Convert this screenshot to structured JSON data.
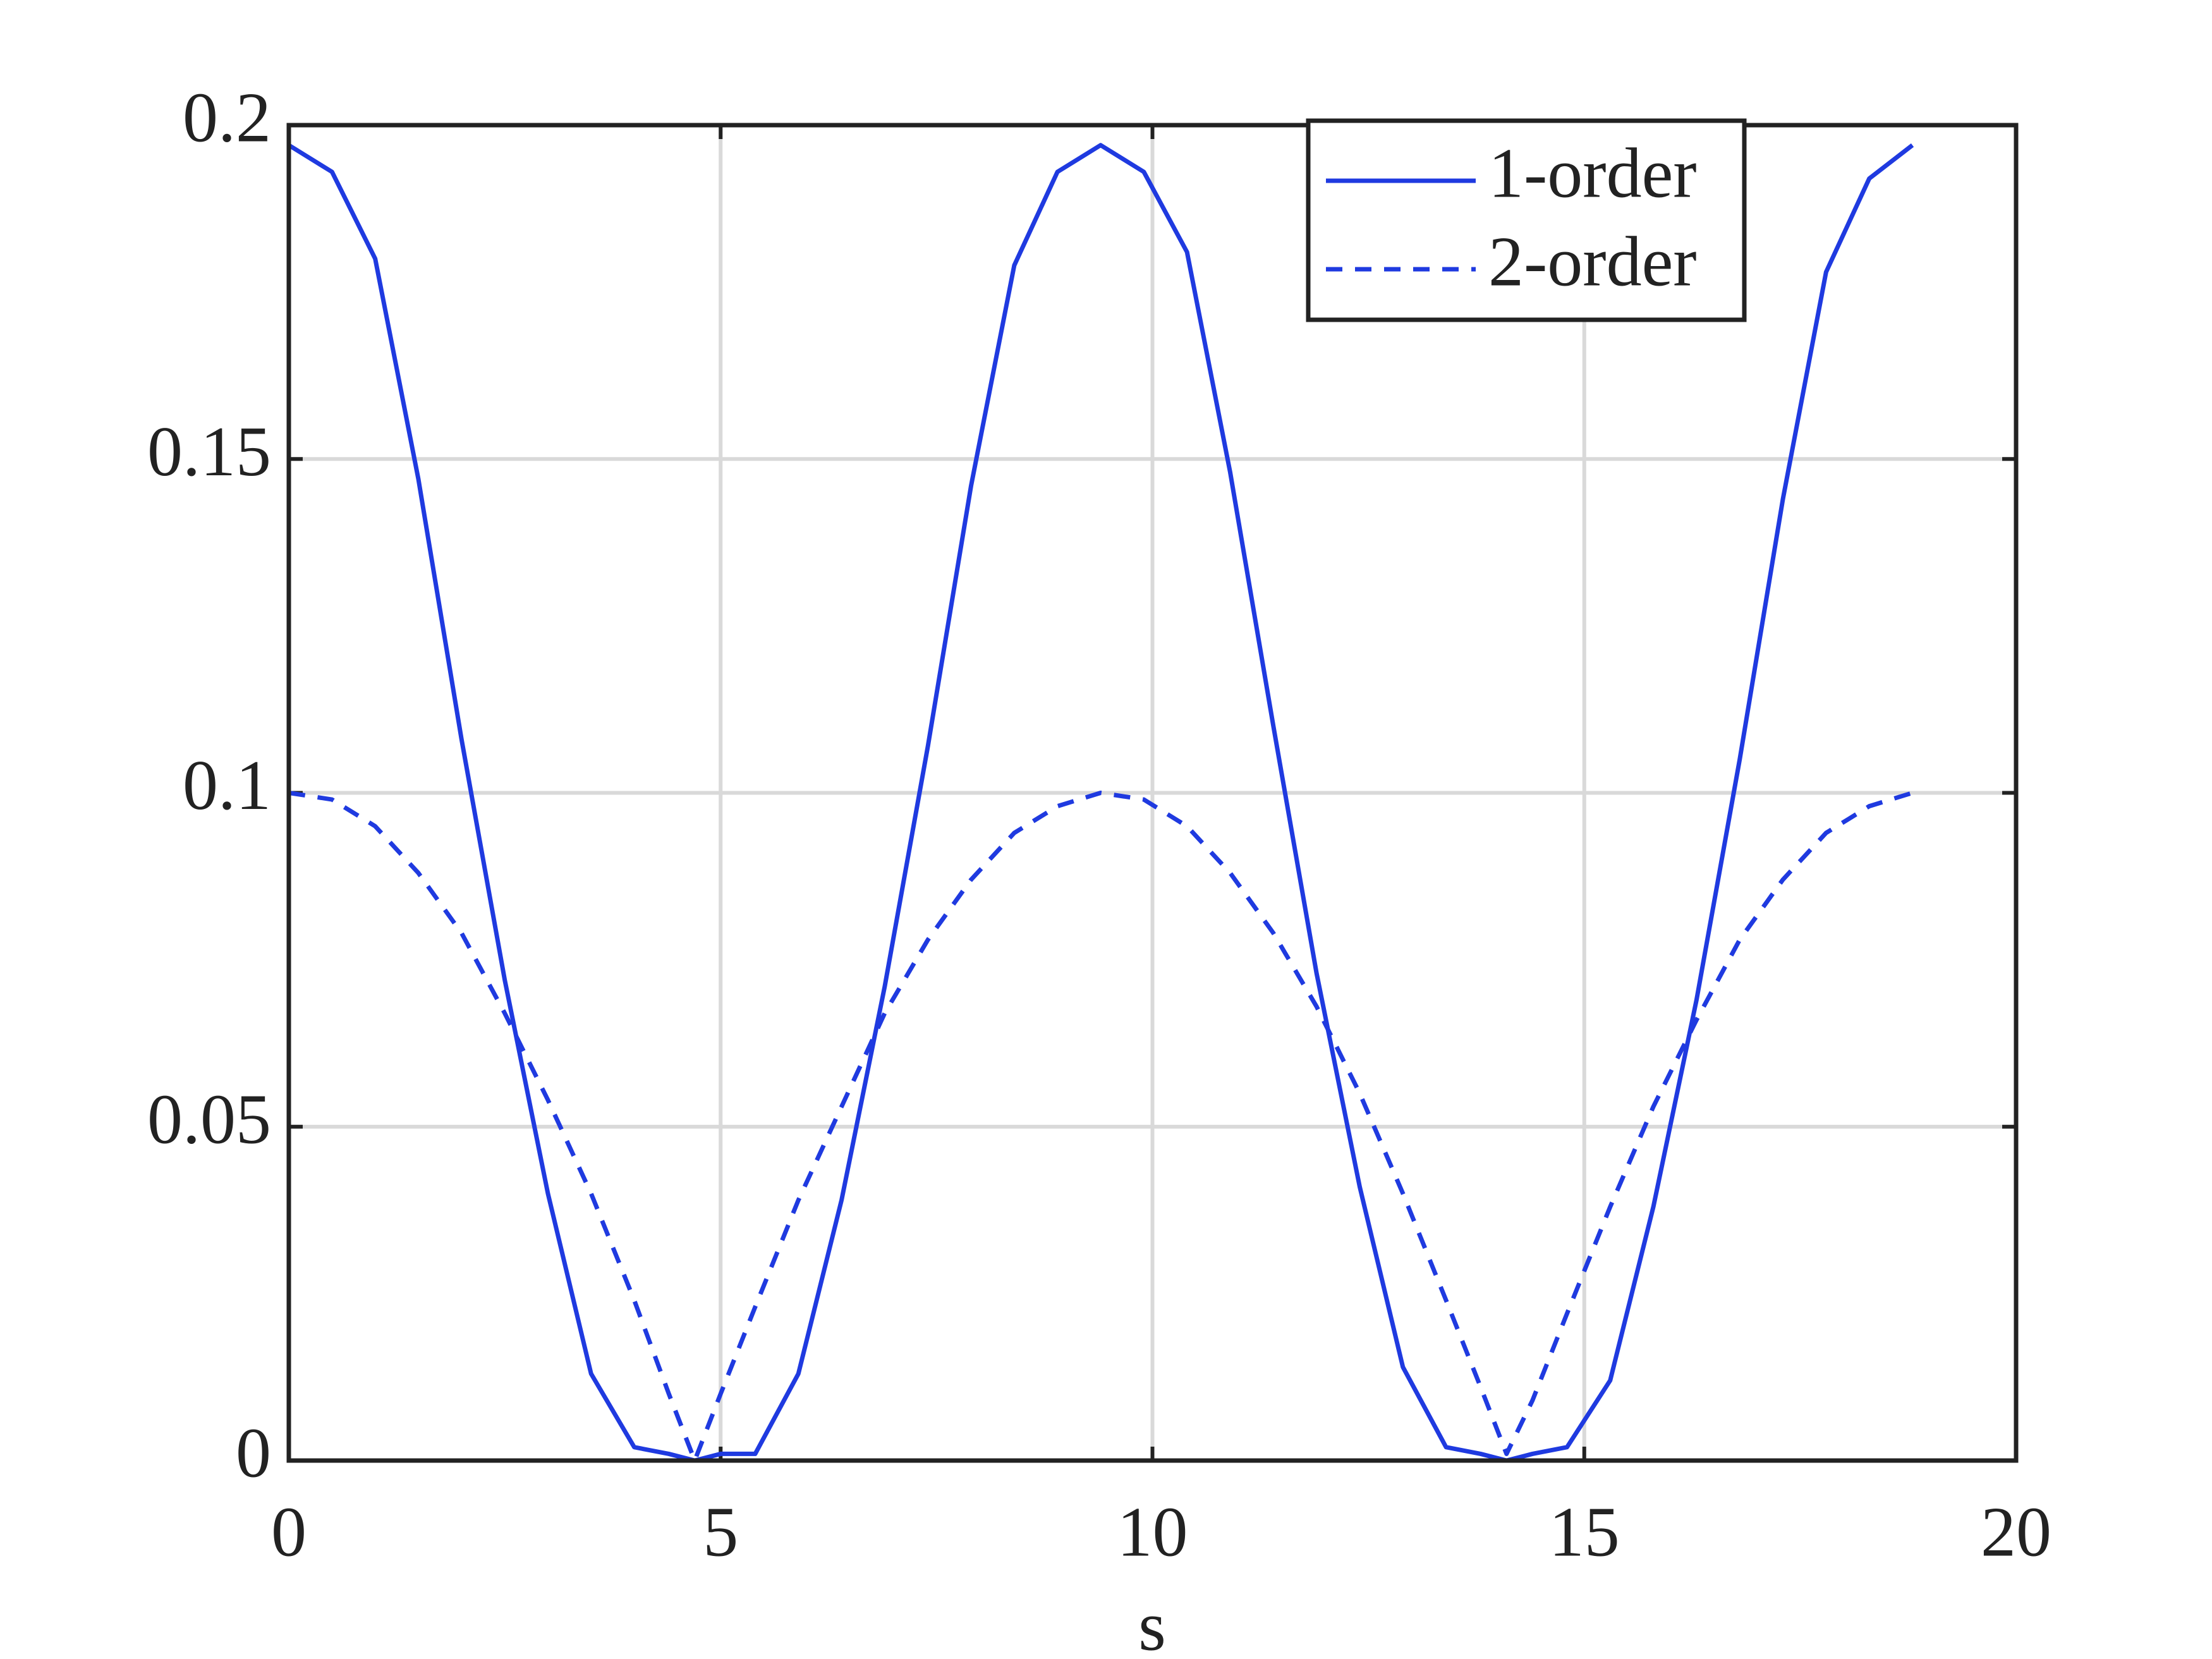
{
  "chart_data": {
    "type": "line",
    "xlabel": "s",
    "x": [
      0,
      0.5,
      1,
      1.5,
      2,
      2.5,
      3,
      3.5,
      4,
      4.4,
      4.7,
      5.0,
      5.4,
      5.9,
      6.4,
      6.9,
      7.4,
      7.9,
      8.4,
      8.9,
      9.4,
      9.9,
      10.4,
      10.9,
      11.4,
      11.9,
      12.4,
      12.9,
      13.4,
      13.8,
      14.1,
      14.4,
      14.8,
      15.3,
      15.8,
      16.3,
      16.8,
      17.3,
      17.8,
      18.3,
      18.8
    ],
    "series": [
      {
        "name": "1-order",
        "color": "#1f3ae0",
        "linestyle": "solid",
        "values": [
          0.197,
          0.193,
          0.18,
          0.147,
          0.108,
          0.072,
          0.04,
          0.013,
          0.002,
          0.001,
          0,
          0.001,
          0.001,
          0.013,
          0.039,
          0.071,
          0.107,
          0.146,
          0.179,
          0.193,
          0.197,
          0.193,
          0.181,
          0.148,
          0.11,
          0.073,
          0.041,
          0.014,
          0.002,
          0.001,
          0,
          0.001,
          0.002,
          0.012,
          0.038,
          0.069,
          0.105,
          0.144,
          0.178,
          0.192,
          0.197
        ]
      },
      {
        "name": "2-order",
        "color": "#1f3ae0",
        "linestyle": "dashed",
        "values": [
          0.1,
          0.099,
          0.095,
          0.088,
          0.079,
          0.067,
          0.054,
          0.04,
          0.024,
          0.01,
          0,
          0.01,
          0.023,
          0.039,
          0.053,
          0.067,
          0.078,
          0.087,
          0.094,
          0.098,
          0.1,
          0.099,
          0.095,
          0.088,
          0.079,
          0.068,
          0.055,
          0.04,
          0.024,
          0.011,
          0.001,
          0.009,
          0.022,
          0.038,
          0.053,
          0.066,
          0.078,
          0.087,
          0.094,
          0.098,
          0.1
        ]
      }
    ],
    "xlim": [
      0,
      20
    ],
    "xticks": [
      0,
      5,
      10,
      15,
      20
    ],
    "ylim": [
      0,
      0.2
    ],
    "yticks": [
      0,
      0.05,
      0.1,
      0.15,
      0.2
    ],
    "grid": true,
    "legend": "upper right"
  }
}
